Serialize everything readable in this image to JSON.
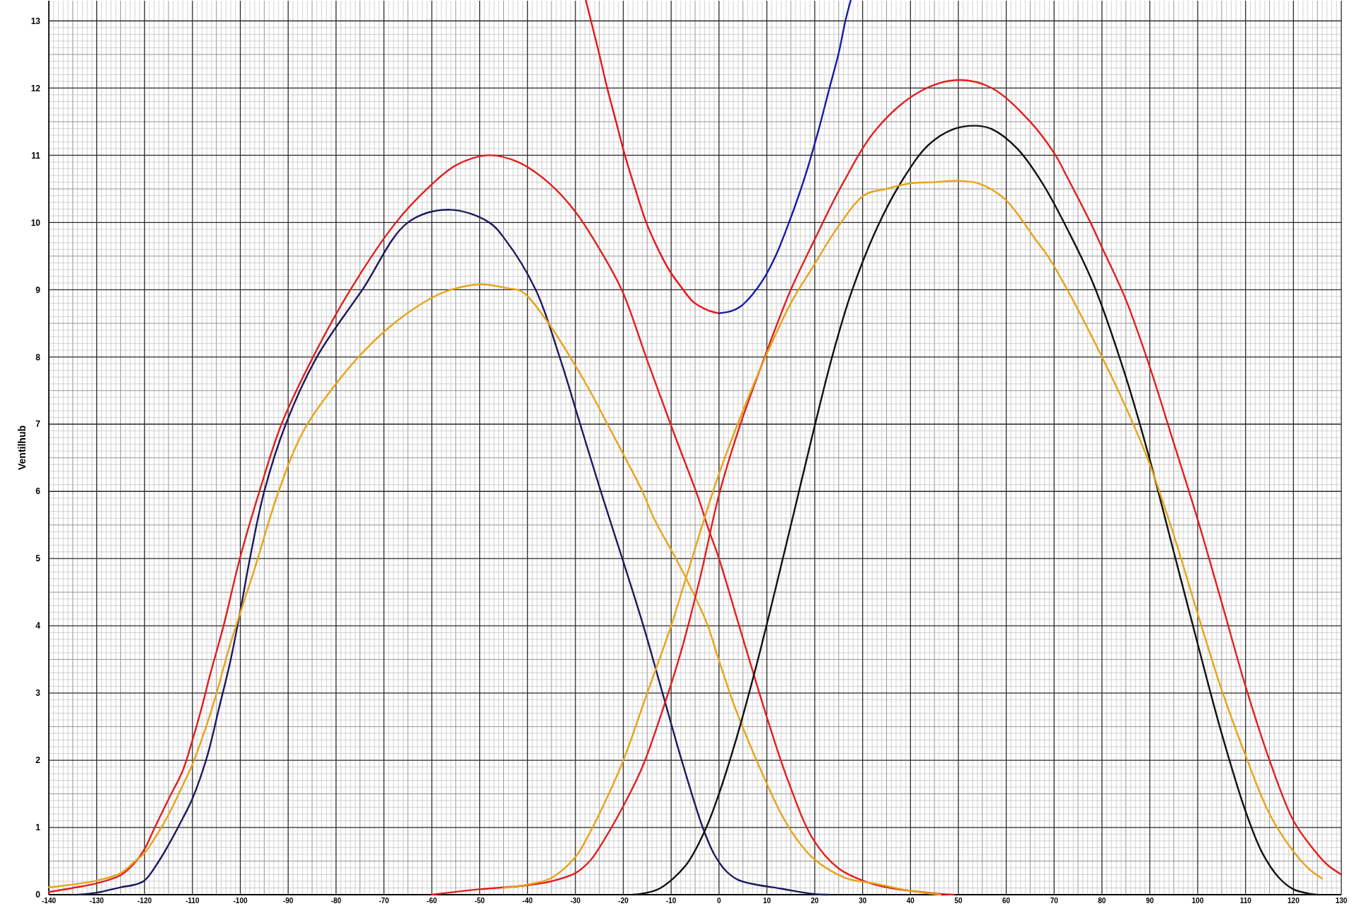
{
  "chart_data": {
    "type": "line",
    "ylabel": "Ventilhub",
    "xlim": [
      -140,
      130
    ],
    "xticks": [
      -140,
      -130,
      -120,
      -110,
      -100,
      -90,
      -80,
      -70,
      -60,
      -50,
      -40,
      -30,
      -20,
      -10,
      0,
      10,
      20,
      30,
      40,
      50,
      60,
      70,
      80,
      90,
      100,
      110,
      120,
      130
    ],
    "ylim": [
      0,
      13.3
    ],
    "yticks": [
      0,
      1,
      2,
      3,
      4,
      5,
      6,
      7,
      8,
      9,
      10,
      11,
      12,
      13
    ],
    "grid": true,
    "series": [
      {
        "color": "#e0201f",
        "x": [
          -140,
          -135,
          -130,
          -125,
          -122,
          -120,
          -118,
          -115,
          -112,
          -110,
          -108,
          -106.4,
          -103.5,
          -100.1,
          -96,
          -91.4,
          -84.8,
          -77,
          -67.5,
          -61,
          -55,
          -48.3,
          -42,
          -35.4,
          -30,
          -24.5,
          -20.2,
          -14.9,
          -9.6,
          -4.3,
          -2.3,
          0,
          4,
          8,
          10.4,
          14.4,
          19.7,
          25,
          30.4,
          35,
          39.7,
          45,
          49
        ],
        "values": [
          0.04,
          0.1,
          0.17,
          0.29,
          0.48,
          0.68,
          0.98,
          1.42,
          1.85,
          2.3,
          2.8,
          3.25,
          4.0,
          5.0,
          6.0,
          7.0,
          8.0,
          9.0,
          10.0,
          10.5,
          10.85,
          11.0,
          10.9,
          10.58,
          10.16,
          9.55,
          8.98,
          7.93,
          6.9,
          5.9,
          5.46,
          5.0,
          4.05,
          3.1,
          2.55,
          1.7,
          0.82,
          0.39,
          0.2,
          0.11,
          0.06,
          0.02,
          0
        ]
      },
      {
        "color": "#1c1a5c",
        "x": [
          -134,
          -130,
          -125,
          -122,
          -120,
          -117,
          -115,
          -112,
          -110,
          -107,
          -104.4,
          -102,
          -99.8,
          -98,
          -95,
          -90.5,
          -84,
          -74.5,
          -65,
          -56.1,
          -48,
          -44.7,
          -38.3,
          -33.3,
          -29,
          -24.7,
          -20.2,
          -15.8,
          -11.8,
          -7.8,
          -3.4,
          -1,
          1.5,
          4,
          7.7,
          13,
          19.7,
          23
        ],
        "values": [
          0,
          0.03,
          0.11,
          0.15,
          0.21,
          0.5,
          0.74,
          1.14,
          1.43,
          2.04,
          2.79,
          3.5,
          4.3,
          5.0,
          6.0,
          7.0,
          8.0,
          9.0,
          10.0,
          10.19,
          10.0,
          9.75,
          9.0,
          8.0,
          7.0,
          6.0,
          5.0,
          4.0,
          3.0,
          2.0,
          1.0,
          0.6,
          0.35,
          0.22,
          0.15,
          0.09,
          0.01,
          0
        ]
      },
      {
        "color": "#e8a31a",
        "x": [
          -140,
          -130,
          -125,
          -122,
          -120,
          -117,
          -115,
          -112,
          -110,
          -106,
          -102,
          -97,
          -92,
          -86.8,
          -80,
          -74,
          -67,
          -60,
          -56,
          -49.7,
          -44,
          -41.1,
          -36.1,
          -31.1,
          -27,
          -23.3,
          -20.2,
          -16,
          -13.6,
          -9,
          -6.9,
          -2.6,
          -0.3,
          3,
          6.4,
          10,
          13,
          16,
          19.7,
          26.4,
          33,
          39.7,
          46.3
        ],
        "values": [
          0.11,
          0.21,
          0.32,
          0.5,
          0.62,
          0.94,
          1.19,
          1.63,
          1.94,
          2.75,
          3.75,
          4.85,
          6.0,
          6.9,
          7.6,
          8.1,
          8.55,
          8.88,
          9.0,
          9.08,
          9.02,
          8.97,
          8.55,
          8.0,
          7.5,
          7.0,
          6.58,
          6.0,
          5.6,
          5.0,
          4.71,
          4.05,
          3.55,
          2.85,
          2.24,
          1.65,
          1.2,
          0.85,
          0.54,
          0.25,
          0.16,
          0.06,
          0
        ]
      },
      {
        "color": "#e0201f",
        "x": [
          -60,
          -50,
          -40,
          -35,
          -30,
          -27,
          -25,
          -20.2,
          -16,
          -12,
          -8,
          -4,
          0,
          4,
          9.7,
          15,
          20,
          26,
          33,
          42,
          50,
          57,
          65,
          70.3,
          72.7,
          77.6,
          80,
          85,
          90,
          95,
          100,
          105,
          110,
          115.3,
          120,
          123.9,
          127,
          130
        ],
        "values": [
          0,
          0.08,
          0.14,
          0.2,
          0.32,
          0.5,
          0.7,
          1.29,
          1.9,
          2.7,
          3.6,
          4.7,
          5.95,
          6.9,
          8.03,
          9.0,
          9.75,
          10.6,
          11.4,
          11.95,
          12.12,
          12.0,
          11.5,
          11.0,
          10.68,
          10.0,
          9.63,
          8.85,
          7.85,
          6.72,
          5.58,
          4.35,
          3.1,
          1.94,
          1.1,
          0.7,
          0.45,
          0.3
        ]
      },
      {
        "color": "#111111",
        "x": [
          -18,
          -15,
          -12.2,
          -6.9,
          -2.9,
          -0.3,
          3.7,
          7.7,
          11.7,
          15.7,
          19.7,
          23.7,
          27.7,
          33,
          38.3,
          43.7,
          49,
          53.7,
          57,
          62.3,
          67.6,
          73,
          78.3,
          85,
          90,
          95,
          100,
          105,
          110,
          113.5,
          117,
          120,
          123,
          125
        ],
        "values": [
          0,
          0.03,
          0.1,
          0.44,
          0.96,
          1.44,
          2.34,
          3.38,
          4.52,
          5.7,
          6.89,
          8.02,
          8.97,
          9.92,
          10.63,
          11.15,
          11.39,
          11.44,
          11.39,
          11.1,
          10.58,
          9.87,
          9.07,
          7.7,
          6.47,
          5.1,
          3.73,
          2.4,
          1.24,
          0.62,
          0.25,
          0.08,
          0.02,
          0
        ]
      },
      {
        "color": "#e8a31a",
        "x": [
          -45,
          -40,
          -35,
          -30,
          -27,
          -25,
          -20.2,
          -15,
          -10,
          -6.9,
          -0.3,
          5,
          9.7,
          15,
          19.7,
          25,
          30.4,
          35,
          39.7,
          45,
          50,
          54.3,
          59.7,
          66.3,
          68.7,
          73,
          80,
          85,
          90,
          95,
          100,
          105,
          110,
          115,
          119.4,
          123,
          126
        ],
        "values": [
          0.1,
          0.15,
          0.25,
          0.56,
          0.92,
          1.2,
          1.96,
          3.0,
          4.0,
          4.71,
          6.2,
          7.2,
          8.0,
          8.8,
          9.35,
          9.95,
          10.41,
          10.5,
          10.58,
          10.6,
          10.62,
          10.58,
          10.35,
          9.73,
          9.5,
          8.97,
          8.0,
          7.25,
          6.4,
          5.35,
          4.18,
          3.05,
          2.07,
          1.2,
          0.7,
          0.4,
          0.24
        ]
      },
      {
        "color": "#e8141c",
        "x": [
          -27.8,
          -25,
          -23.35,
          -21.5,
          -19.66,
          -17.5,
          -15.2,
          -12.7,
          -10.3,
          -8,
          -5.4,
          -2.5,
          0
        ],
        "values": [
          13.3,
          12.5,
          12.0,
          11.5,
          11.0,
          10.5,
          10.0,
          9.6,
          9.28,
          9.05,
          8.82,
          8.7,
          8.65
        ]
      },
      {
        "color": "#1a1aa5",
        "x": [
          0,
          2.5,
          4.5,
          7,
          9.4,
          12,
          14.3,
          16.5,
          18.3,
          19.3,
          21,
          23,
          25,
          26.4,
          27.5
        ],
        "values": [
          8.65,
          8.68,
          8.75,
          8.93,
          9.17,
          9.53,
          9.94,
          10.37,
          10.76,
          11.0,
          11.43,
          11.98,
          12.52,
          13.0,
          13.3
        ]
      }
    ]
  }
}
